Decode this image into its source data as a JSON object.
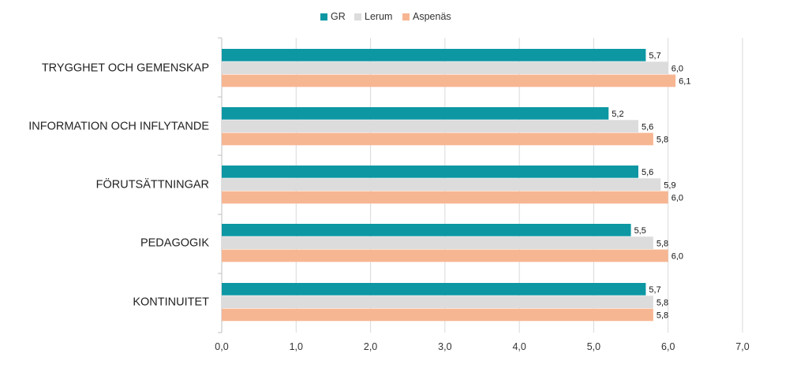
{
  "chart_data": {
    "type": "bar",
    "orientation": "horizontal",
    "categories": [
      "TRYGGHET OCH GEMENSKAP",
      "INFORMATION OCH INFLYTANDE",
      "FÖRUTSÄTTNINGAR",
      "PEDAGOGIK",
      "KONTINUITET"
    ],
    "series": [
      {
        "name": "GR",
        "color": "#0C97A3",
        "values": [
          5.7,
          5.2,
          5.6,
          5.5,
          5.7
        ],
        "labels": [
          "5,7",
          "5,2",
          "5,6",
          "5,5",
          "5,7"
        ]
      },
      {
        "name": "Lerum",
        "color": "#DCDCDC",
        "values": [
          6.0,
          5.6,
          5.9,
          5.8,
          5.8
        ],
        "labels": [
          "6,0",
          "5,6",
          "5,9",
          "5,8",
          "5,8"
        ]
      },
      {
        "name": "Aspenäs",
        "color": "#F7B692",
        "values": [
          6.1,
          5.8,
          6.0,
          6.0,
          5.8
        ],
        "labels": [
          "6,1",
          "5,8",
          "6,0",
          "6,0",
          "5,8"
        ]
      }
    ],
    "xlim": [
      0,
      7
    ],
    "xticks": [
      0,
      1,
      2,
      3,
      4,
      5,
      6,
      7
    ],
    "xtick_labels": [
      "0,0",
      "1,0",
      "2,0",
      "3,0",
      "4,0",
      "5,0",
      "6,0",
      "7,0"
    ],
    "grid": "vertical",
    "legend_position": "top-center",
    "title": "",
    "xlabel": "",
    "ylabel": ""
  }
}
